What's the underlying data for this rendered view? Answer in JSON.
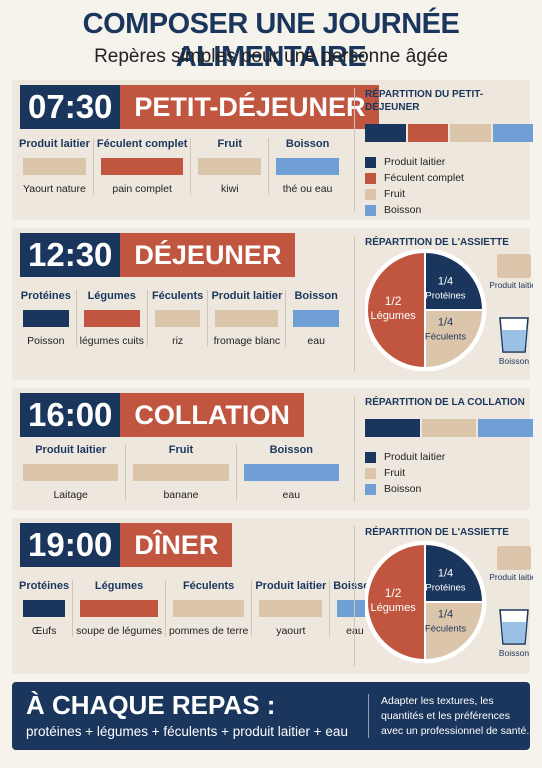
{
  "header": {
    "title": "COMPOSER UNE JOURNÉE ALIMENTAIRE",
    "subtitle": "Repères simples pour une personne âgée"
  },
  "meals": [
    {
      "time": "07:30",
      "name": "PETIT-DÉJEUNER",
      "items": [
        {
          "category": "Produit laitier",
          "food": "Yaourt nature",
          "color": "#dcc6ab"
        },
        {
          "category": "Féculent complet",
          "food": "pain complet",
          "color": "#c0563f"
        },
        {
          "category": "Fruit",
          "food": "kiwi",
          "color": "#dcc6ab"
        },
        {
          "category": "Boisson",
          "food": "thé ou eau",
          "color": "#6f9fd4"
        }
      ],
      "panel": {
        "kind": "bar",
        "title": "RÉPARTITION DU PETIT-DÉJEUNER",
        "legend": [
          {
            "label": "Produit laitier",
            "color": "#1b365d"
          },
          {
            "label": "Féculent complet",
            "color": "#c0563f"
          },
          {
            "label": "Fruit",
            "color": "#dcc6ab"
          },
          {
            "label": "Boisson",
            "color": "#6f9fd4"
          }
        ]
      }
    },
    {
      "time": "12:30",
      "name": "DÉJEUNER",
      "items": [
        {
          "category": "Protéines",
          "food": "Poisson",
          "color": "#1b365d"
        },
        {
          "category": "Légumes",
          "food": "légumes cuits",
          "color": "#c0563f"
        },
        {
          "category": "Féculents",
          "food": "riz",
          "color": "#dcc6ab"
        },
        {
          "category": "Produit laitier",
          "food": "fromage blanc",
          "color": "#dcc6ab"
        },
        {
          "category": "Boisson",
          "food": "eau",
          "color": "#6f9fd4"
        }
      ],
      "panel": {
        "kind": "pie",
        "title": "RÉPARTITION DE L'ASSIETTE",
        "slices": [
          {
            "fraction": "1/2",
            "label": "Légumes",
            "color": "#c0563f"
          },
          {
            "fraction": "1/4",
            "label": "Protéines",
            "color": "#1b365d"
          },
          {
            "fraction": "1/4",
            "label": "Féculents",
            "color": "#dcc6ab"
          }
        ],
        "extras": [
          "Produit laitier",
          "Boisson"
        ]
      }
    },
    {
      "time": "16:00",
      "name": "COLLATION",
      "items": [
        {
          "category": "Produit laitier",
          "food": "Laitage",
          "color": "#dcc6ab"
        },
        {
          "category": "Fruit",
          "food": "banane",
          "color": "#dcc6ab"
        },
        {
          "category": "Boisson",
          "food": "eau",
          "color": "#6f9fd4"
        }
      ],
      "panel": {
        "kind": "bar",
        "title": "RÉPARTITION DE LA COLLATION",
        "legend": [
          {
            "label": "Produit laitier",
            "color": "#1b365d"
          },
          {
            "label": "Fruit",
            "color": "#dcc6ab"
          },
          {
            "label": "Boisson",
            "color": "#6f9fd4"
          }
        ]
      }
    },
    {
      "time": "19:00",
      "name": "DÎNER",
      "items": [
        {
          "category": "Protéines",
          "food": "Œufs",
          "color": "#1b365d"
        },
        {
          "category": "Légumes",
          "food": "soupe de légumes",
          "color": "#c0563f"
        },
        {
          "category": "Féculents",
          "food": "pommes de terre",
          "color": "#dcc6ab"
        },
        {
          "category": "Produit laitier",
          "food": "yaourt",
          "color": "#dcc6ab"
        },
        {
          "category": "Boisson",
          "food": "eau",
          "color": "#6f9fd4"
        }
      ],
      "panel": {
        "kind": "pie",
        "title": "RÉPARTITION DE L'ASSIETTE",
        "slices": [
          {
            "fraction": "1/2",
            "label": "Légumes",
            "color": "#c0563f"
          },
          {
            "fraction": "1/4",
            "label": "Protéines",
            "color": "#1b365d"
          },
          {
            "fraction": "1/4",
            "label": "Féculents",
            "color": "#dcc6ab"
          }
        ],
        "extras": [
          "Produit laitier",
          "Boisson"
        ]
      }
    }
  ],
  "footer": {
    "title": "À CHAQUE REPAS :",
    "formula": "protéines + légumes + féculents + produit laitier + eau",
    "note": "Adapter les textures, les quantités et les préférences avec un professionnel de santé."
  }
}
